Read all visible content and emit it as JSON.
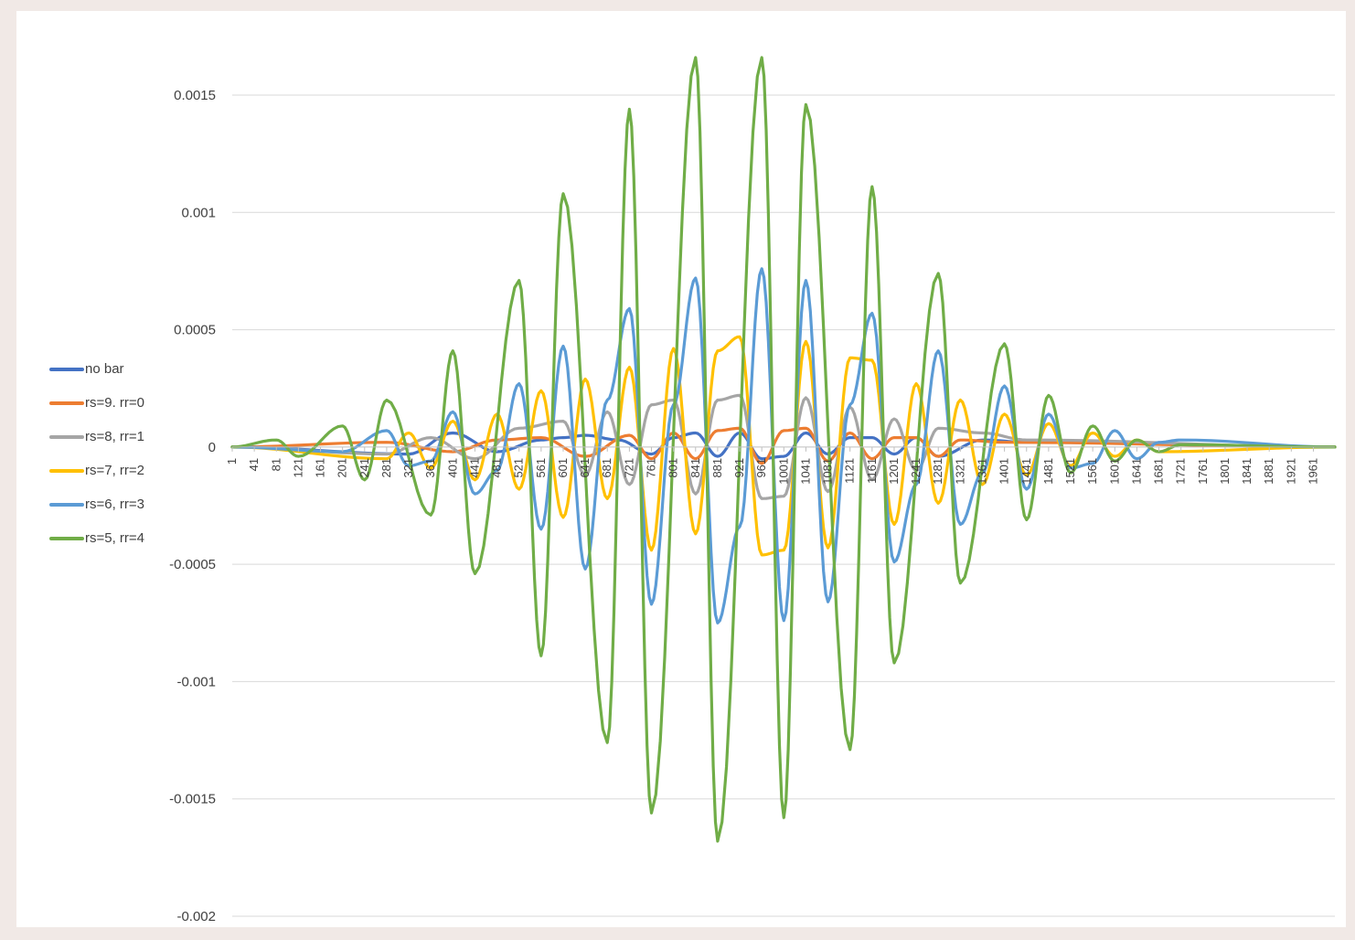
{
  "chart_data": {
    "type": "line",
    "title": "",
    "xlabel": "",
    "ylabel": "",
    "x_range": [
      1,
      2000
    ],
    "x_tick_labels": [
      "1",
      "41",
      "81",
      "121",
      "161",
      "201",
      "241",
      "281",
      "321",
      "361",
      "401",
      "441",
      "481",
      "521",
      "561",
      "601",
      "641",
      "681",
      "721",
      "761",
      "801",
      "841",
      "881",
      "921",
      "961",
      "1001",
      "1041",
      "1081",
      "1121",
      "1161",
      "1201",
      "1241",
      "1281",
      "1321",
      "1361",
      "1401",
      "1441",
      "1481",
      "1521",
      "1561",
      "1601",
      "1641",
      "1681",
      "1721",
      "1761",
      "1801",
      "1841",
      "1881",
      "1921",
      "1961"
    ],
    "ylim": [
      -0.002,
      0.0015
    ],
    "y_tick_labels": [
      "0.0015",
      "0.001",
      "0.0005",
      "0",
      "-0.0005",
      "-0.001",
      "-0.0015",
      "-0.002"
    ],
    "y_tick_values": [
      0.0015,
      0.001,
      0.0005,
      0,
      -0.0005,
      -0.001,
      -0.0015,
      -0.002
    ],
    "grid": true,
    "legend_position": "left",
    "series": [
      {
        "name": "no bar",
        "color": "#4472c4",
        "peaks": [
          [
            321,
            -3e-05
          ],
          [
            401,
            6e-05
          ],
          [
            481,
            -2e-05
          ],
          [
            561,
            3e-05
          ],
          [
            601,
            4e-05
          ],
          [
            641,
            5e-05
          ],
          [
            701,
            3e-05
          ],
          [
            761,
            -3e-05
          ],
          [
            801,
            4e-05
          ],
          [
            841,
            6e-05
          ],
          [
            881,
            -4e-05
          ],
          [
            921,
            6e-05
          ],
          [
            961,
            -5e-05
          ],
          [
            1001,
            -4e-05
          ],
          [
            1041,
            6e-05
          ],
          [
            1081,
            -3e-05
          ],
          [
            1121,
            4e-05
          ],
          [
            1161,
            4e-05
          ],
          [
            1201,
            -3e-05
          ],
          [
            1241,
            4e-05
          ],
          [
            1281,
            -4e-05
          ],
          [
            1361,
            3e-05
          ],
          [
            1441,
            2e-05
          ]
        ]
      },
      {
        "name": "rs=9. rr=0",
        "color": "#ed7d31",
        "peaks": [
          [
            281,
            2e-05
          ],
          [
            401,
            -2e-05
          ],
          [
            481,
            3e-05
          ],
          [
            561,
            4e-05
          ],
          [
            641,
            -4e-05
          ],
          [
            721,
            5e-05
          ],
          [
            761,
            -5e-05
          ],
          [
            801,
            6e-05
          ],
          [
            841,
            -5e-05
          ],
          [
            881,
            7e-05
          ],
          [
            921,
            8e-05
          ],
          [
            961,
            -7e-05
          ],
          [
            1001,
            7e-05
          ],
          [
            1041,
            8e-05
          ],
          [
            1081,
            -6e-05
          ],
          [
            1121,
            6e-05
          ],
          [
            1161,
            -5e-05
          ],
          [
            1201,
            4e-05
          ],
          [
            1241,
            4e-05
          ],
          [
            1281,
            -4e-05
          ],
          [
            1321,
            3e-05
          ],
          [
            1401,
            2e-05
          ]
        ]
      },
      {
        "name": "rs=8, rr=1",
        "color": "#a5a5a5",
        "peaks": [
          [
            281,
            -3e-05
          ],
          [
            361,
            4e-05
          ],
          [
            441,
            -5e-05
          ],
          [
            521,
            8e-05
          ],
          [
            601,
            0.00011
          ],
          [
            641,
            -0.00012
          ],
          [
            681,
            0.00015
          ],
          [
            721,
            -0.00016
          ],
          [
            761,
            0.00018
          ],
          [
            801,
            0.0002
          ],
          [
            841,
            -0.0002
          ],
          [
            881,
            0.0002
          ],
          [
            921,
            0.00022
          ],
          [
            961,
            -0.00022
          ],
          [
            1001,
            -0.00021
          ],
          [
            1041,
            0.00021
          ],
          [
            1081,
            -0.00019
          ],
          [
            1121,
            0.00017
          ],
          [
            1161,
            -0.00014
          ],
          [
            1201,
            0.00012
          ],
          [
            1241,
            -0.0001
          ],
          [
            1281,
            8e-05
          ],
          [
            1361,
            6e-05
          ],
          [
            1441,
            3e-05
          ]
        ]
      },
      {
        "name": "rs=7, rr=2",
        "color": "#ffc000",
        "peaks": [
          [
            281,
            -5e-05
          ],
          [
            321,
            6e-05
          ],
          [
            361,
            -9e-05
          ],
          [
            401,
            0.00011
          ],
          [
            441,
            -0.00014
          ],
          [
            481,
            0.00014
          ],
          [
            521,
            -0.00018
          ],
          [
            561,
            0.00024
          ],
          [
            601,
            -0.0003
          ],
          [
            641,
            0.00029
          ],
          [
            681,
            -0.00022
          ],
          [
            721,
            0.00034
          ],
          [
            761,
            -0.00044
          ],
          [
            801,
            0.00042
          ],
          [
            841,
            -0.00037
          ],
          [
            881,
            0.00041
          ],
          [
            921,
            0.00047
          ],
          [
            961,
            -0.00046
          ],
          [
            1001,
            -0.00044
          ],
          [
            1041,
            0.00045
          ],
          [
            1081,
            -0.00043
          ],
          [
            1121,
            0.00038
          ],
          [
            1161,
            0.00037
          ],
          [
            1201,
            -0.00033
          ],
          [
            1241,
            0.00027
          ],
          [
            1281,
            -0.00024
          ],
          [
            1321,
            0.0002
          ],
          [
            1361,
            -0.00016
          ],
          [
            1401,
            0.00014
          ],
          [
            1441,
            -0.00012
          ],
          [
            1481,
            0.0001
          ],
          [
            1521,
            -8e-05
          ],
          [
            1561,
            6e-05
          ],
          [
            1601,
            -4e-05
          ],
          [
            1641,
            3e-05
          ],
          [
            1681,
            -2e-05
          ]
        ]
      },
      {
        "name": "rs=6, rr=3",
        "color": "#5b9bd5",
        "peaks": [
          [
            201,
            -2e-05
          ],
          [
            281,
            7e-05
          ],
          [
            321,
            -8e-05
          ],
          [
            361,
            -6e-05
          ],
          [
            401,
            0.00015
          ],
          [
            441,
            -0.0002
          ],
          [
            481,
            -0.0001
          ],
          [
            521,
            0.00027
          ],
          [
            561,
            -0.00035
          ],
          [
            601,
            0.00043
          ],
          [
            641,
            -0.00052
          ],
          [
            681,
            0.0002
          ],
          [
            721,
            0.00059
          ],
          [
            761,
            -0.00067
          ],
          [
            801,
            0.00018
          ],
          [
            841,
            0.00072
          ],
          [
            881,
            -0.00075
          ],
          [
            921,
            -0.00034
          ],
          [
            961,
            0.00076
          ],
          [
            1001,
            -0.00074
          ],
          [
            1041,
            0.00071
          ],
          [
            1081,
            -0.00066
          ],
          [
            1121,
            0.00018
          ],
          [
            1161,
            0.00057
          ],
          [
            1201,
            -0.00049
          ],
          [
            1241,
            -0.00016
          ],
          [
            1281,
            0.00041
          ],
          [
            1321,
            -0.00033
          ],
          [
            1361,
            -0.00011
          ],
          [
            1401,
            0.00026
          ],
          [
            1441,
            -0.00018
          ],
          [
            1481,
            0.00014
          ],
          [
            1521,
            -9e-05
          ],
          [
            1561,
            -7e-05
          ],
          [
            1601,
            7e-05
          ],
          [
            1641,
            -5e-05
          ],
          [
            1681,
            2e-05
          ],
          [
            1721,
            3e-05
          ]
        ]
      },
      {
        "name": "rs=5, rr=4",
        "color": "#70ad47",
        "peaks": [
          [
            81,
            3e-05
          ],
          [
            121,
            -4e-05
          ],
          [
            201,
            9e-05
          ],
          [
            241,
            -0.00014
          ],
          [
            281,
            0.0002
          ],
          [
            361,
            -0.00029
          ],
          [
            401,
            0.00041
          ],
          [
            441,
            -0.00054
          ],
          [
            521,
            0.00071
          ],
          [
            561,
            -0.00089
          ],
          [
            601,
            0.00108
          ],
          [
            681,
            -0.00126
          ],
          [
            721,
            0.00144
          ],
          [
            761,
            -0.00156
          ],
          [
            841,
            0.00166
          ],
          [
            881,
            -0.00168
          ],
          [
            961,
            0.00166
          ],
          [
            1001,
            -0.00158
          ],
          [
            1041,
            0.00146
          ],
          [
            1121,
            -0.00129
          ],
          [
            1161,
            0.00111
          ],
          [
            1201,
            -0.00092
          ],
          [
            1281,
            0.00074
          ],
          [
            1321,
            -0.00058
          ],
          [
            1401,
            0.00044
          ],
          [
            1441,
            -0.00031
          ],
          [
            1481,
            0.00022
          ],
          [
            1521,
            -0.00011
          ],
          [
            1561,
            9e-05
          ],
          [
            1601,
            -6e-05
          ],
          [
            1641,
            3e-05
          ],
          [
            1681,
            -2e-05
          ],
          [
            1721,
            1e-05
          ]
        ]
      }
    ]
  }
}
